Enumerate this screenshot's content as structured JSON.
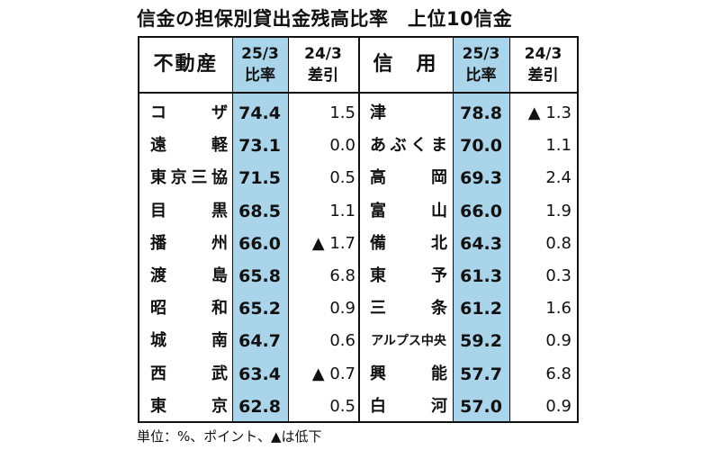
{
  "title": "信金の担保別貸出金残高比率　上位10信金",
  "headers": {
    "left_category": "不動産",
    "right_category": "信　用",
    "col_ratio_line1": "25/3",
    "col_ratio_line2": "比率",
    "col_diff_line1": "24/3",
    "col_diff_line2": "差引"
  },
  "left_rows": [
    {
      "name": "コザ",
      "ratio": "74.4",
      "diff": "1.5"
    },
    {
      "name": "遠軽",
      "ratio": "73.1",
      "diff": "0.0"
    },
    {
      "name": "東京三協",
      "ratio": "71.5",
      "diff": "0.5"
    },
    {
      "name": "目黒",
      "ratio": "68.5",
      "diff": "1.1"
    },
    {
      "name": "播州",
      "ratio": "66.0",
      "diff": "▲ 1.7"
    },
    {
      "name": "渡島",
      "ratio": "65.8",
      "diff": "6.8"
    },
    {
      "name": "昭和",
      "ratio": "65.2",
      "diff": "0.9"
    },
    {
      "name": "城南",
      "ratio": "64.7",
      "diff": "0.6"
    },
    {
      "name": "西武",
      "ratio": "63.4",
      "diff": "▲ 0.7"
    },
    {
      "name": "東京",
      "ratio": "62.8",
      "diff": "0.5"
    }
  ],
  "right_rows": [
    {
      "name": "津",
      "ratio": "78.8",
      "diff": "▲ 1.3"
    },
    {
      "name": "あぶくま",
      "ratio": "70.0",
      "diff": "1.1"
    },
    {
      "name": "高岡",
      "ratio": "69.3",
      "diff": "2.4"
    },
    {
      "name": "富山",
      "ratio": "66.0",
      "diff": "1.9"
    },
    {
      "name": "備北",
      "ratio": "64.3",
      "diff": "0.8"
    },
    {
      "name": "東予",
      "ratio": "61.3",
      "diff": "0.3"
    },
    {
      "name": "三条",
      "ratio": "61.2",
      "diff": "1.6"
    },
    {
      "name": "アルプス中央",
      "ratio": "59.2",
      "diff": "0.9"
    },
    {
      "name": "興能",
      "ratio": "57.7",
      "diff": "6.8"
    },
    {
      "name": "白河",
      "ratio": "57.0",
      "diff": "0.9"
    }
  ],
  "footnote": "単位：%、ポイント、▲は低下",
  "colors": {
    "highlight": "#a9d4ea",
    "border": "#111111"
  }
}
